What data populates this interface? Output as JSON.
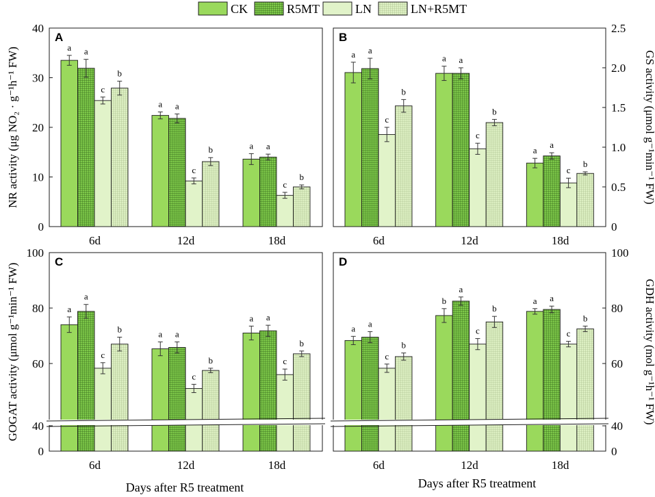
{
  "legend": {
    "entries": [
      "CK",
      "R5MT",
      "LN",
      "LN+R5MT"
    ]
  },
  "colors": {
    "ck": "#9ad95c",
    "r5mt": "#7ec94a",
    "ln": "#e1f3c9",
    "lnr5mt": "#ddf0c3",
    "stroke": "#1a1a1a"
  },
  "x_common_label": "Days after R5 treatment",
  "chart_data": [
    {
      "type": "bar",
      "panel": "A",
      "categories": [
        "6d",
        "12d",
        "18d"
      ],
      "series": [
        {
          "name": "CK",
          "values": [
            33.5,
            22.4,
            13.6
          ],
          "errors": [
            1.0,
            0.7,
            1.1
          ],
          "letters": [
            "a",
            "a",
            "a"
          ]
        },
        {
          "name": "R5MT",
          "values": [
            31.9,
            21.8,
            14.0
          ],
          "errors": [
            1.8,
            0.9,
            0.6
          ],
          "letters": [
            "a",
            "a",
            "a"
          ]
        },
        {
          "name": "LN",
          "values": [
            25.4,
            9.2,
            6.3
          ],
          "errors": [
            0.7,
            0.6,
            0.6
          ],
          "letters": [
            "c",
            "c",
            "c"
          ]
        },
        {
          "name": "LN+R5MT",
          "values": [
            27.9,
            13.1,
            8.0
          ],
          "errors": [
            1.4,
            0.8,
            0.4
          ],
          "letters": [
            "b",
            "b",
            "b"
          ]
        }
      ],
      "ylim": [
        0,
        40
      ],
      "yticks": [
        "0",
        "10",
        "20",
        "30",
        "40"
      ],
      "ylabel": "NR activity (μg NO₂ · g⁻¹h⁻¹ FW)",
      "axis_side": "left",
      "axis_break": false
    },
    {
      "type": "bar",
      "panel": "B",
      "categories": [
        "6d",
        "12d",
        "18d"
      ],
      "series": [
        {
          "name": "CK",
          "values": [
            1.94,
            1.93,
            0.8
          ],
          "errors": [
            0.13,
            0.09,
            0.06
          ],
          "letters": [
            "a",
            "a",
            "a"
          ]
        },
        {
          "name": "R5MT",
          "values": [
            1.99,
            1.93,
            0.89
          ],
          "errors": [
            0.13,
            0.07,
            0.04
          ],
          "letters": [
            "a",
            "a",
            "a"
          ]
        },
        {
          "name": "LN",
          "values": [
            1.16,
            0.98,
            0.55
          ],
          "errors": [
            0.09,
            0.07,
            0.06
          ],
          "letters": [
            "c",
            "c",
            "c"
          ]
        },
        {
          "name": "LN+R5MT",
          "values": [
            1.52,
            1.31,
            0.67
          ],
          "errors": [
            0.08,
            0.04,
            0.02
          ],
          "letters": [
            "b",
            "b",
            "b"
          ]
        }
      ],
      "ylim": [
        0,
        2.5
      ],
      "yticks": [
        "0",
        "0.5",
        "1.0",
        "1.5",
        "2.0",
        "2.5"
      ],
      "ylabel": "GS activity (μmol g⁻¹min⁻¹ FW)",
      "axis_side": "right",
      "axis_break": false
    },
    {
      "type": "bar",
      "panel": "C",
      "categories": [
        "6d",
        "12d",
        "18d"
      ],
      "series": [
        {
          "name": "CK",
          "values": [
            74,
            65.3,
            71.0
          ],
          "errors": [
            2.8,
            2.5,
            2.5
          ],
          "letters": [
            "a",
            "a",
            "a"
          ]
        },
        {
          "name": "R5MT",
          "values": [
            78.8,
            65.8,
            71.8
          ],
          "errors": [
            2.5,
            2.0,
            2.0
          ],
          "letters": [
            "a",
            "a",
            "a"
          ]
        },
        {
          "name": "LN",
          "values": [
            58.3,
            51.0,
            56.0
          ],
          "errors": [
            2.0,
            1.5,
            2.0
          ],
          "letters": [
            "c",
            "c",
            "c"
          ]
        },
        {
          "name": "LN+R5MT",
          "values": [
            67.0,
            57.5,
            63.5
          ],
          "errors": [
            2.5,
            0.8,
            1.0
          ],
          "letters": [
            "b",
            "b",
            "b"
          ]
        }
      ],
      "ylim": [
        0,
        100
      ],
      "yticks": [
        "0",
        "40",
        "60",
        "80",
        "100"
      ],
      "ylabel": "GOGAT activity (μmol g⁻¹min⁻¹ FW)",
      "axis_side": "left",
      "axis_break": true,
      "break_range": [
        0,
        40
      ]
    },
    {
      "type": "bar",
      "panel": "D",
      "categories": [
        "6d",
        "12d",
        "18d"
      ],
      "series": [
        {
          "name": "CK",
          "values": [
            68.3,
            77.3,
            78.8
          ],
          "errors": [
            1.5,
            2.5,
            1.0
          ],
          "letters": [
            "a",
            "b",
            "a"
          ]
        },
        {
          "name": "R5MT",
          "values": [
            69.5,
            82.5,
            79.5
          ],
          "errors": [
            2.0,
            1.5,
            1.2
          ],
          "letters": [
            "a",
            "a",
            "a"
          ]
        },
        {
          "name": "LN",
          "values": [
            58.3,
            67.0,
            67.0
          ],
          "errors": [
            1.5,
            2.0,
            1.0
          ],
          "letters": [
            "c",
            "c",
            "c"
          ]
        },
        {
          "name": "LN+R5MT",
          "values": [
            62.5,
            75.0,
            72.5
          ],
          "errors": [
            1.3,
            2.0,
            1.0
          ],
          "letters": [
            "b",
            "b",
            "b"
          ]
        }
      ],
      "ylim": [
        0,
        100
      ],
      "yticks": [
        "0",
        "40",
        "60",
        "80",
        "100"
      ],
      "ylabel": "GDH activity (mol g⁻¹h⁻¹ FW)",
      "axis_side": "right",
      "axis_break": true,
      "break_range": [
        0,
        40
      ]
    }
  ]
}
